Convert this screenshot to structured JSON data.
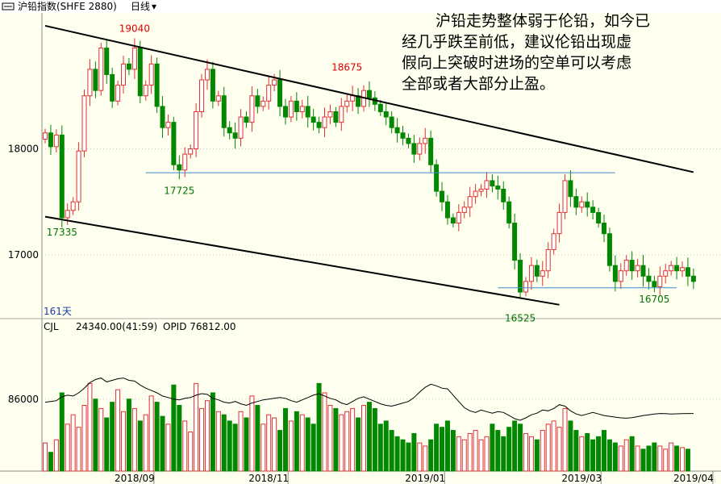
{
  "header": {
    "title": "沪铅指数(SHFE 2880)",
    "period": "日线",
    "period_arrow": "▾"
  },
  "annotation": [
    "沪铅走势整体弱于伦铅，如今已",
    "经几乎跌至前低，建议伦铅出现虚",
    "假向上突破时进场的空单可以考虑",
    "全部或者大部分止盈。"
  ],
  "days_label": "161天",
  "volume_panel": {
    "indicator": "CJL",
    "volume_text": "24340.00(41:59)",
    "opid_text": "OPID 76812.00"
  },
  "colors": {
    "background": "#fffff0",
    "up": "#e03030",
    "down": "#008800",
    "trend": "#000000",
    "support": "#3c8ccc",
    "high_label": "#dd0000",
    "low_label": "#007700"
  },
  "chart_data": {
    "type": "candlestick",
    "price_axis": {
      "ticks": [
        17000,
        18000
      ],
      "tick_labels": [
        "17000",
        "18000"
      ],
      "range": [
        16300,
        19300
      ]
    },
    "volume_axis": {
      "ticks": [
        86000
      ],
      "tick_labels": [
        "86000"
      ]
    },
    "x_labels": [
      {
        "i": 16,
        "label": "2018/09"
      },
      {
        "i": 40,
        "label": "2018/11"
      },
      {
        "i": 68,
        "label": "2019/01"
      },
      {
        "i": 96,
        "label": "2019/03"
      },
      {
        "i": 116,
        "label": "2019/04"
      }
    ],
    "price_labels": [
      {
        "text": "19040",
        "i": 16,
        "price": 19040,
        "kind": "high"
      },
      {
        "text": "18675",
        "i": 54,
        "price": 18675,
        "kind": "high"
      },
      {
        "text": "17725",
        "i": 24,
        "price": 17725,
        "kind": "low"
      },
      {
        "text": "17335",
        "i": 3,
        "price": 17335,
        "kind": "low"
      },
      {
        "text": "16525",
        "i": 85,
        "price": 16525,
        "kind": "low"
      },
      {
        "text": "16705",
        "i": 109,
        "price": 16705,
        "kind": "low"
      }
    ],
    "trendlines": [
      {
        "from": {
          "i": 0,
          "price": 19160
        },
        "to": {
          "i": 116,
          "price": 17780
        }
      },
      {
        "from": {
          "i": 0,
          "price": 17360
        },
        "to": {
          "i": 92,
          "price": 16530
        }
      }
    ],
    "support_lines": [
      {
        "from_i": 18,
        "to_i": 102,
        "price": 17775
      },
      {
        "from_i": 81,
        "to_i": 113,
        "price": 16690
      }
    ],
    "close": [
      18150,
      18020,
      18130,
      17350,
      17420,
      17500,
      17980,
      18500,
      18750,
      18550,
      18950,
      18700,
      18450,
      18600,
      18800,
      18750,
      18950,
      18500,
      18600,
      18800,
      18400,
      18200,
      18250,
      17850,
      17800,
      17950,
      18000,
      18350,
      18650,
      18750,
      18450,
      18500,
      18200,
      18150,
      18100,
      18300,
      18250,
      18500,
      18400,
      18450,
      18600,
      18650,
      18400,
      18300,
      18450,
      18350,
      18400,
      18300,
      18250,
      18200,
      18300,
      18350,
      18250,
      18400,
      18450,
      18500,
      18400,
      18550,
      18480,
      18420,
      18350,
      18300,
      18200,
      18150,
      18100,
      18050,
      17950,
      18050,
      18100,
      17850,
      17600,
      17500,
      17350,
      17300,
      17400,
      17450,
      17550,
      17600,
      17620,
      17700,
      17650,
      17620,
      17500,
      17300,
      16950,
      16650,
      16750,
      16900,
      16800,
      16850,
      17050,
      17200,
      17400,
      17700,
      17550,
      17450,
      17500,
      17450,
      17400,
      17300,
      17200,
      16900,
      16750,
      16850,
      16950,
      16850,
      16900,
      16800,
      16750,
      16700,
      16800,
      16850,
      16900,
      16850,
      16880,
      16800,
      16750
    ],
    "volume": [
      58000,
      52000,
      60000,
      90000,
      70000,
      76000,
      68000,
      82000,
      96000,
      86000,
      80000,
      74000,
      84000,
      92000,
      78000,
      86000,
      80000,
      72000,
      76000,
      88000,
      84000,
      75000,
      70000,
      95000,
      82000,
      72000,
      65000,
      96000,
      80000,
      85000,
      90000,
      78000,
      76000,
      72000,
      70000,
      78000,
      74000,
      88000,
      82000,
      70000,
      76000,
      74000,
      66000,
      80000,
      72000,
      78000,
      76000,
      74000,
      70000,
      96000,
      90000,
      82000,
      80000,
      76000,
      78000,
      80000,
      74000,
      82000,
      84000,
      80000,
      70000,
      72000,
      66000,
      62000,
      60000,
      58000,
      64000,
      58000,
      56000,
      60000,
      70000,
      68000,
      72000,
      66000,
      62000,
      60000,
      64000,
      66000,
      60000,
      62000,
      70000,
      66000,
      62000,
      68000,
      72000,
      70000,
      64000,
      62000,
      60000,
      66000,
      70000,
      72000,
      68000,
      80000,
      72000,
      66000,
      62000,
      64000,
      60000,
      62000,
      66000,
      60000,
      58000,
      56000,
      60000,
      62000,
      56000,
      54000,
      56000,
      58000,
      56000,
      54000,
      58000,
      56000,
      55000,
      54000,
      24340
    ],
    "opid": [
      84000,
      84500,
      85000,
      87500,
      88500,
      88000,
      90000,
      93000,
      96500,
      98500,
      99500,
      97000,
      98000,
      99000,
      99500,
      98000,
      97500,
      95000,
      93000,
      91500,
      90000,
      88000,
      87000,
      86000,
      85500,
      86500,
      87000,
      88500,
      89500,
      89000,
      86500,
      85500,
      84000,
      83500,
      84500,
      83000,
      82000,
      83500,
      84500,
      85500,
      86000,
      86500,
      87000,
      86500,
      85000,
      84000,
      85500,
      87000,
      88500,
      89500,
      88000,
      86500,
      85500,
      83500,
      82500,
      84500,
      86500,
      87500,
      86000,
      84500,
      83000,
      82000,
      81500,
      82500,
      83500,
      84500,
      87000,
      90500,
      93500,
      95500,
      94500,
      93000,
      92500,
      88500,
      84500,
      80500,
      78500,
      77500,
      79000,
      78000,
      77000,
      78000,
      77500,
      75500,
      73500,
      72500,
      74000,
      76000,
      77000,
      79000,
      78500,
      80000,
      82500,
      81500,
      78500,
      76500,
      75500,
      76500,
      77500,
      76500,
      75500,
      75000,
      74500,
      74000,
      73800,
      74200,
      74800,
      75500,
      76000,
      76500,
      76800,
      76700,
      76500,
      76600,
      76700,
      76800,
      76812
    ]
  }
}
